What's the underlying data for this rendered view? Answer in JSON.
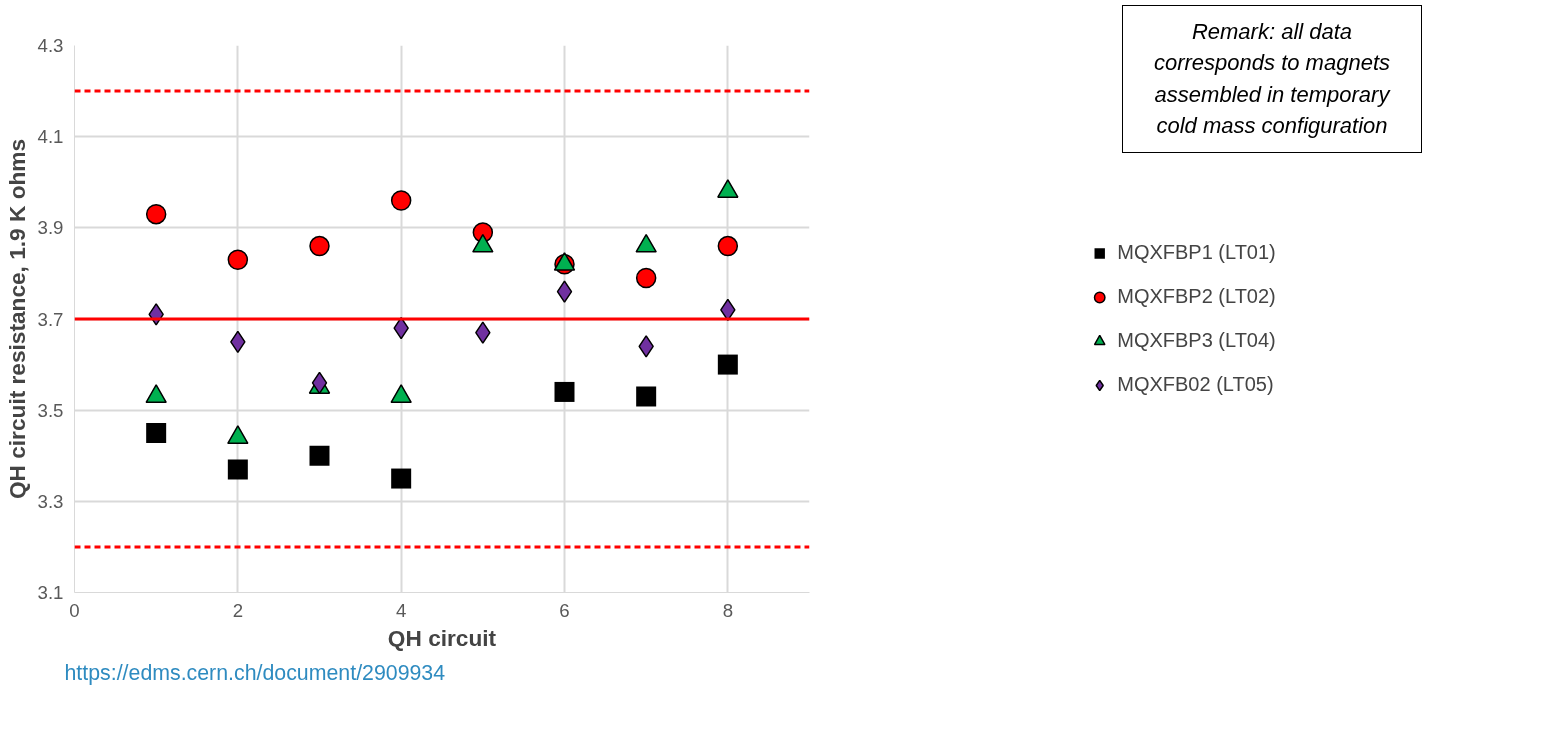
{
  "chart_data": {
    "type": "scatter",
    "xlabel": "QH circuit",
    "ylabel": "QH circuit resistance, 1.9 K ohms",
    "x": [
      1,
      2,
      3,
      4,
      5,
      6,
      7,
      8
    ],
    "series": [
      {
        "name": "MQXFBP1 (LT01)",
        "color": "#000000",
        "marker": "square",
        "values": [
          3.45,
          3.37,
          3.4,
          3.35,
          null,
          3.54,
          3.53,
          3.6
        ]
      },
      {
        "name": "MQXFBP2 (LT02)",
        "color": "#ff0000",
        "marker": "circle",
        "values": [
          3.93,
          3.83,
          3.86,
          3.96,
          3.89,
          3.82,
          3.79,
          3.86
        ]
      },
      {
        "name": "MQXFBP3 (LT04)",
        "color": "#00b050",
        "marker": "triangle",
        "values": [
          3.53,
          3.44,
          3.55,
          3.53,
          3.86,
          3.82,
          3.86,
          3.98
        ]
      },
      {
        "name": "MQXFB02 (LT05)",
        "color": "#7030a0",
        "marker": "diamond",
        "values": [
          3.71,
          3.65,
          3.56,
          3.68,
          3.67,
          3.76,
          3.64,
          3.72
        ]
      }
    ],
    "xlim": [
      0,
      9
    ],
    "xticks": [
      0,
      2,
      4,
      6,
      8
    ],
    "ylim": [
      3.1,
      4.3
    ],
    "yticks": [
      3.1,
      3.3,
      3.5,
      3.7,
      3.9,
      4.1,
      4.3
    ],
    "grid": true,
    "legend": "right",
    "ref_lines": [
      {
        "axis": "y",
        "value": 4.2,
        "color": "#ff0000",
        "line_style": "dashed"
      },
      {
        "axis": "y",
        "value": 3.7,
        "color": "#ff0000",
        "line_style": "solid"
      },
      {
        "axis": "y",
        "value": 3.2,
        "color": "#ff0000",
        "line_style": "dashed"
      }
    ],
    "annotations": [
      "Remark: all data\ncorresponds to  magnets\nassembled in temporary\ncold mass configuration",
      "https://edms.cern.ch/document/2909934"
    ]
  }
}
